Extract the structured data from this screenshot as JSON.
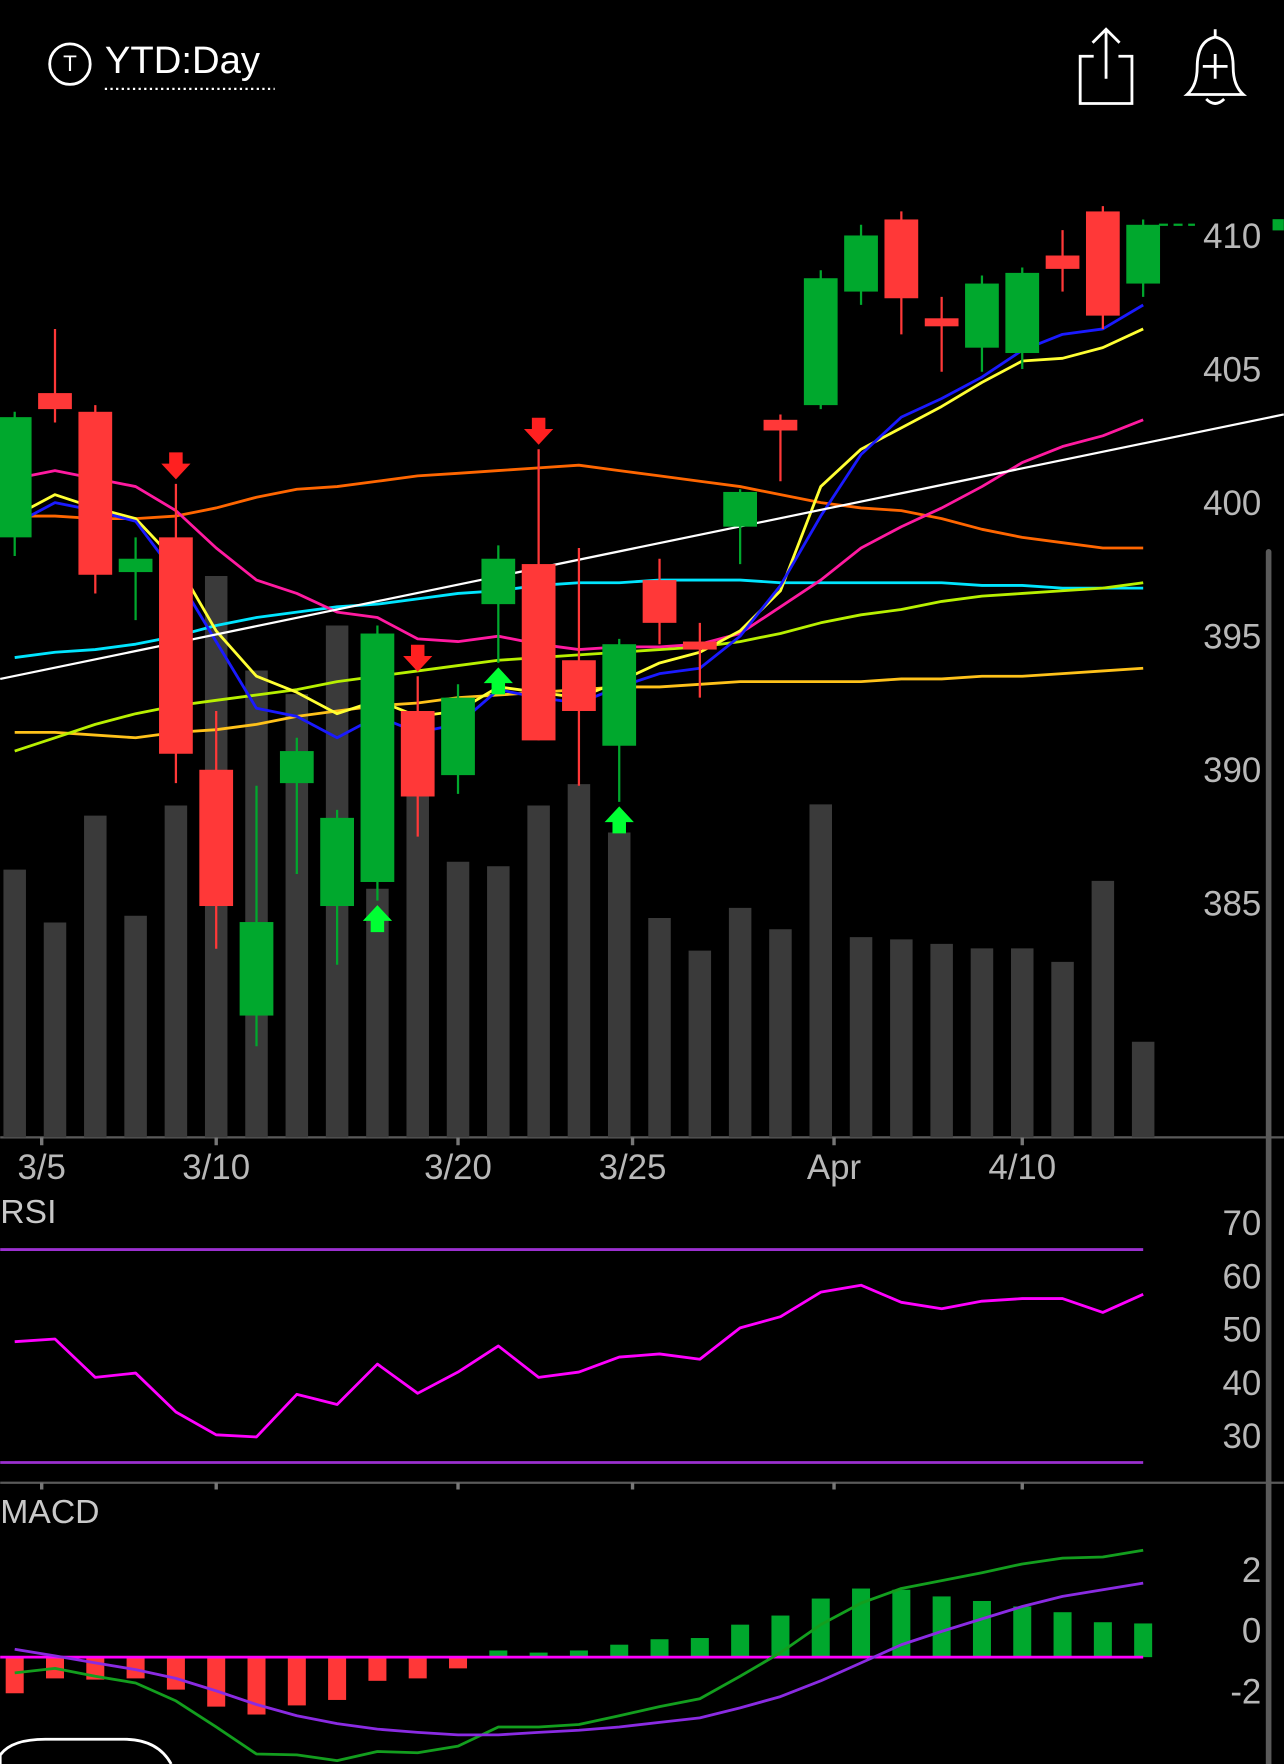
{
  "header": {
    "title": "YTD:Day"
  },
  "chart_data": [
    {
      "type": "candlestick",
      "xlim": [
        -0.36,
        31.49
      ],
      "ylim": [
        377.24,
        414.34
      ],
      "yticks": [
        385,
        390,
        395,
        400,
        405,
        410
      ],
      "grid": true,
      "xticks": [
        {
          "value": 0.67,
          "label": "3/5"
        },
        {
          "value": 5,
          "label": "3/10"
        },
        {
          "value": 11,
          "label": "3/20"
        },
        {
          "value": 15.33,
          "label": "3/25"
        },
        {
          "value": 20.33,
          "label": "Apr"
        },
        {
          "value": 25,
          "label": "4/10"
        }
      ],
      "up_color": "#00a82d",
      "down_color": "#ff3838",
      "open": [
        399.7,
        405.1,
        404.4,
        398.4,
        399.7,
        391.0,
        381.8,
        390.5,
        385.9,
        386.8,
        393.2,
        390.8,
        397.2,
        398.7,
        395.1,
        391.9,
        398.1,
        395.8,
        400.1,
        404.1,
        404.65,
        408.9,
        411.6,
        407.9,
        406.8,
        406.6,
        410.25,
        411.9,
        409.2
      ],
      "high": [
        404.4,
        407.5,
        404.65,
        399.7,
        401.7,
        393.2,
        390.4,
        392.2,
        389.5,
        396.4,
        394.5,
        394.2,
        399.4,
        403.0,
        399.3,
        395.9,
        398.9,
        396.5,
        401.5,
        404.3,
        409.7,
        411.4,
        411.9,
        408.7,
        409.5,
        409.8,
        411.2,
        412.1,
        411.6
      ],
      "low": [
        399.0,
        404.0,
        397.6,
        396.6,
        390.5,
        384.3,
        380.65,
        387.1,
        383.7,
        386.1,
        388.5,
        390.1,
        395.0,
        392.1,
        390.4,
        389.8,
        395.7,
        393.7,
        398.7,
        401.8,
        404.5,
        408.4,
        407.3,
        405.9,
        405.9,
        406.0,
        408.9,
        407.5,
        408.7
      ],
      "close": [
        404.2,
        404.5,
        398.3,
        398.9,
        391.6,
        385.9,
        385.3,
        391.7,
        389.2,
        396.1,
        390.0,
        393.7,
        398.9,
        392.1,
        393.2,
        395.7,
        396.5,
        395.5,
        401.4,
        403.7,
        409.4,
        411.0,
        408.65,
        407.6,
        409.2,
        409.6,
        409.75,
        408.0,
        411.4
      ],
      "volume": {
        "color": "#3a3a3a",
        "lim": [
          0,
          520
        ],
        "values": [
          238,
          191,
          286,
          197,
          295,
          499,
          415,
          394,
          455,
          221,
          316,
          245,
          241,
          295,
          314,
          271,
          195,
          166,
          204,
          185,
          296,
          178,
          176,
          172,
          168,
          168,
          156,
          228,
          85
        ]
      },
      "overlays": [
        {
          "color": "#ff6600",
          "values": [
            400.5,
            400.5,
            400.4,
            400.4,
            400.5,
            400.8,
            401.2,
            401.5,
            401.6,
            401.8,
            402.0,
            402.1,
            402.2,
            402.3,
            402.4,
            402.2,
            402.0,
            401.8,
            401.6,
            401.3,
            401.0,
            400.8,
            400.7,
            400.4,
            400.0,
            399.7,
            399.5,
            399.3,
            399.3
          ]
        },
        {
          "color": "#00e5ff",
          "values": [
            395.2,
            395.4,
            395.5,
            395.7,
            396.0,
            396.4,
            396.7,
            396.9,
            397.1,
            397.2,
            397.4,
            397.6,
            397.7,
            397.9,
            398.0,
            398.0,
            398.1,
            398.1,
            398.1,
            398.0,
            398.0,
            398.0,
            398.0,
            398.0,
            397.9,
            397.9,
            397.8,
            397.8,
            397.8
          ]
        },
        {
          "color": "#ffc21a",
          "values": [
            392.4,
            392.4,
            392.3,
            392.2,
            392.4,
            392.5,
            392.7,
            393.0,
            393.2,
            393.4,
            393.5,
            393.7,
            393.8,
            393.9,
            394.0,
            394.1,
            394.1,
            394.2,
            394.3,
            394.3,
            394.3,
            394.3,
            394.4,
            394.4,
            394.5,
            394.5,
            394.6,
            394.7,
            394.8
          ]
        },
        {
          "color": "#b8f000",
          "values": [
            391.7,
            392.2,
            392.7,
            393.1,
            393.4,
            393.6,
            393.8,
            394.0,
            394.3,
            394.5,
            394.7,
            394.9,
            395.1,
            395.2,
            395.3,
            395.4,
            395.5,
            395.6,
            395.8,
            396.1,
            396.5,
            396.8,
            397.0,
            397.3,
            397.5,
            397.6,
            397.7,
            397.8,
            398.0
          ]
        },
        {
          "color": "#ff1aa0",
          "values": [
            401.9,
            402.2,
            401.9,
            401.6,
            400.7,
            399.3,
            398.1,
            397.6,
            396.9,
            396.7,
            395.9,
            395.8,
            396.0,
            395.7,
            395.5,
            395.6,
            395.6,
            395.7,
            396.1,
            397.1,
            398.1,
            399.3,
            400.1,
            400.8,
            401.6,
            402.5,
            403.1,
            403.5,
            404.1
          ]
        },
        {
          "color": "#ffff33",
          "values": [
            400.5,
            401.3,
            400.8,
            400.4,
            398.8,
            396.2,
            394.5,
            393.9,
            393.1,
            393.6,
            393.0,
            393.2,
            394.1,
            393.9,
            393.7,
            394.3,
            395.0,
            395.4,
            396.2,
            397.7,
            401.6,
            403.0,
            403.8,
            404.6,
            405.5,
            406.3,
            406.4,
            406.8,
            407.5
          ]
        },
        {
          "color": "#1a1aff",
          "values": [
            400.2,
            401.0,
            400.7,
            400.3,
            398.3,
            395.8,
            393.3,
            393.0,
            392.2,
            393.0,
            392.4,
            392.7,
            394.0,
            393.7,
            393.5,
            394.1,
            394.6,
            394.8,
            396.0,
            397.9,
            400.5,
            402.8,
            404.2,
            404.9,
            405.7,
            406.7,
            407.3,
            407.5,
            408.4
          ]
        }
      ],
      "trendline": {
        "color": "#ffffff",
        "x": [
          -0.36,
          31.49
        ],
        "values": [
          394.4,
          404.3
        ]
      },
      "sell_signals": [
        4,
        10,
        13
      ],
      "sell_color": "#ff2020",
      "buy_signals": [
        9,
        12,
        15
      ],
      "buy_color": "#00ff33"
    },
    {
      "type": "line",
      "title": "RSI",
      "ylim": [
        26.2,
        80.3
      ],
      "yticks": [
        30,
        40,
        50,
        60,
        70
      ],
      "grid": true,
      "levels": [
        30,
        70
      ],
      "level_color": "#9b30d0",
      "series": [
        {
          "color": "#ff00ff",
          "values": [
            52.7,
            53.2,
            46.0,
            46.8,
            39.5,
            35.2,
            34.8,
            42.8,
            40.9,
            48.5,
            43.0,
            47.0,
            51.9,
            46.0,
            47.0,
            49.8,
            50.4,
            49.4,
            55.3,
            57.4,
            62.0,
            63.3,
            60.1,
            58.9,
            60.3,
            60.8,
            60.8,
            58.2,
            61.6
          ]
        }
      ]
    },
    {
      "type": "macd",
      "title": "MACD",
      "ylim": [
        -3.52,
        5.3
      ],
      "yticks": [
        -2,
        0,
        2
      ],
      "grid": true,
      "zero_color": "#ff00ff",
      "histogram": {
        "up_color": "#00a82d",
        "down_color": "#ff3838",
        "values": [
          -1.19,
          -0.7,
          -0.74,
          -0.7,
          -1.07,
          -1.63,
          -1.89,
          -1.59,
          -1.41,
          -0.78,
          -0.7,
          -0.37,
          0.22,
          0.15,
          0.22,
          0.41,
          0.59,
          0.63,
          1.07,
          1.37,
          1.93,
          2.26,
          2.22,
          2.0,
          1.85,
          1.67,
          1.48,
          1.15,
          1.11
        ]
      },
      "series": [
        {
          "color": "#139e1e",
          "values": [
            -0.52,
            -0.37,
            -0.63,
            -0.85,
            -1.44,
            -2.3,
            -3.19,
            -3.22,
            -3.41,
            -3.11,
            -3.15,
            -2.93,
            -2.3,
            -2.3,
            -2.22,
            -1.93,
            -1.63,
            -1.37,
            -0.63,
            0.15,
            1.07,
            1.78,
            2.26,
            2.52,
            2.78,
            3.07,
            3.26,
            3.3,
            3.52
          ]
        },
        {
          "color": "#8a2be2",
          "values": [
            0.26,
            0.04,
            -0.19,
            -0.41,
            -0.7,
            -1.11,
            -1.56,
            -1.93,
            -2.19,
            -2.37,
            -2.48,
            -2.56,
            -2.56,
            -2.48,
            -2.41,
            -2.3,
            -2.15,
            -2.0,
            -1.67,
            -1.3,
            -0.78,
            -0.19,
            0.41,
            0.85,
            1.26,
            1.67,
            2.0,
            2.22,
            2.44
          ]
        }
      ]
    }
  ]
}
